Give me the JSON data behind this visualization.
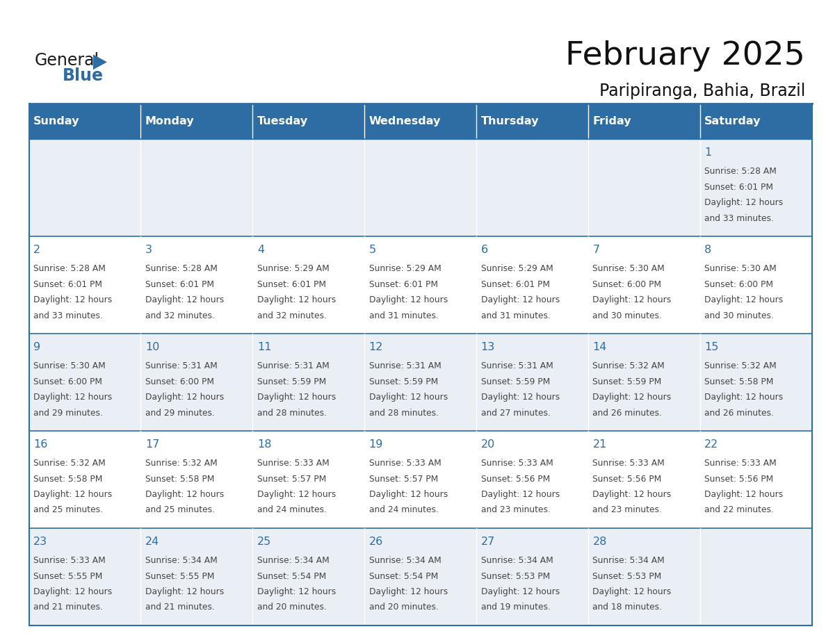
{
  "title": "February 2025",
  "subtitle": "Paripiranga, Bahia, Brazil",
  "days_of_week": [
    "Sunday",
    "Monday",
    "Tuesday",
    "Wednesday",
    "Thursday",
    "Friday",
    "Saturday"
  ],
  "header_bg": "#2E6DA4",
  "header_text": "#FFFFFF",
  "row_bg_odd": "#EAEFF5",
  "row_bg_even": "#FFFFFF",
  "day_num_color": "#2E6DA4",
  "text_color": "#444444",
  "border_color": "#2E6DA4",
  "logo_general_color": "#1a1a1a",
  "logo_blue_color": "#2E6DA4",
  "logo_tri_color": "#2E6DA4",
  "calendar": [
    [
      null,
      null,
      null,
      null,
      null,
      null,
      {
        "day": 1,
        "sunrise": "5:28 AM",
        "sunset": "6:01 PM",
        "daylight": "12 hours",
        "daylight2": "and 33 minutes."
      }
    ],
    [
      {
        "day": 2,
        "sunrise": "5:28 AM",
        "sunset": "6:01 PM",
        "daylight": "12 hours",
        "daylight2": "and 33 minutes."
      },
      {
        "day": 3,
        "sunrise": "5:28 AM",
        "sunset": "6:01 PM",
        "daylight": "12 hours",
        "daylight2": "and 32 minutes."
      },
      {
        "day": 4,
        "sunrise": "5:29 AM",
        "sunset": "6:01 PM",
        "daylight": "12 hours",
        "daylight2": "and 32 minutes."
      },
      {
        "day": 5,
        "sunrise": "5:29 AM",
        "sunset": "6:01 PM",
        "daylight": "12 hours",
        "daylight2": "and 31 minutes."
      },
      {
        "day": 6,
        "sunrise": "5:29 AM",
        "sunset": "6:01 PM",
        "daylight": "12 hours",
        "daylight2": "and 31 minutes."
      },
      {
        "day": 7,
        "sunrise": "5:30 AM",
        "sunset": "6:00 PM",
        "daylight": "12 hours",
        "daylight2": "and 30 minutes."
      },
      {
        "day": 8,
        "sunrise": "5:30 AM",
        "sunset": "6:00 PM",
        "daylight": "12 hours",
        "daylight2": "and 30 minutes."
      }
    ],
    [
      {
        "day": 9,
        "sunrise": "5:30 AM",
        "sunset": "6:00 PM",
        "daylight": "12 hours",
        "daylight2": "and 29 minutes."
      },
      {
        "day": 10,
        "sunrise": "5:31 AM",
        "sunset": "6:00 PM",
        "daylight": "12 hours",
        "daylight2": "and 29 minutes."
      },
      {
        "day": 11,
        "sunrise": "5:31 AM",
        "sunset": "5:59 PM",
        "daylight": "12 hours",
        "daylight2": "and 28 minutes."
      },
      {
        "day": 12,
        "sunrise": "5:31 AM",
        "sunset": "5:59 PM",
        "daylight": "12 hours",
        "daylight2": "and 28 minutes."
      },
      {
        "day": 13,
        "sunrise": "5:31 AM",
        "sunset": "5:59 PM",
        "daylight": "12 hours",
        "daylight2": "and 27 minutes."
      },
      {
        "day": 14,
        "sunrise": "5:32 AM",
        "sunset": "5:59 PM",
        "daylight": "12 hours",
        "daylight2": "and 26 minutes."
      },
      {
        "day": 15,
        "sunrise": "5:32 AM",
        "sunset": "5:58 PM",
        "daylight": "12 hours",
        "daylight2": "and 26 minutes."
      }
    ],
    [
      {
        "day": 16,
        "sunrise": "5:32 AM",
        "sunset": "5:58 PM",
        "daylight": "12 hours",
        "daylight2": "and 25 minutes."
      },
      {
        "day": 17,
        "sunrise": "5:32 AM",
        "sunset": "5:58 PM",
        "daylight": "12 hours",
        "daylight2": "and 25 minutes."
      },
      {
        "day": 18,
        "sunrise": "5:33 AM",
        "sunset": "5:57 PM",
        "daylight": "12 hours",
        "daylight2": "and 24 minutes."
      },
      {
        "day": 19,
        "sunrise": "5:33 AM",
        "sunset": "5:57 PM",
        "daylight": "12 hours",
        "daylight2": "and 24 minutes."
      },
      {
        "day": 20,
        "sunrise": "5:33 AM",
        "sunset": "5:56 PM",
        "daylight": "12 hours",
        "daylight2": "and 23 minutes."
      },
      {
        "day": 21,
        "sunrise": "5:33 AM",
        "sunset": "5:56 PM",
        "daylight": "12 hours",
        "daylight2": "and 23 minutes."
      },
      {
        "day": 22,
        "sunrise": "5:33 AM",
        "sunset": "5:56 PM",
        "daylight": "12 hours",
        "daylight2": "and 22 minutes."
      }
    ],
    [
      {
        "day": 23,
        "sunrise": "5:33 AM",
        "sunset": "5:55 PM",
        "daylight": "12 hours",
        "daylight2": "and 21 minutes."
      },
      {
        "day": 24,
        "sunrise": "5:34 AM",
        "sunset": "5:55 PM",
        "daylight": "12 hours",
        "daylight2": "and 21 minutes."
      },
      {
        "day": 25,
        "sunrise": "5:34 AM",
        "sunset": "5:54 PM",
        "daylight": "12 hours",
        "daylight2": "and 20 minutes."
      },
      {
        "day": 26,
        "sunrise": "5:34 AM",
        "sunset": "5:54 PM",
        "daylight": "12 hours",
        "daylight2": "and 20 minutes."
      },
      {
        "day": 27,
        "sunrise": "5:34 AM",
        "sunset": "5:53 PM",
        "daylight": "12 hours",
        "daylight2": "and 19 minutes."
      },
      {
        "day": 28,
        "sunrise": "5:34 AM",
        "sunset": "5:53 PM",
        "daylight": "12 hours",
        "daylight2": "and 18 minutes."
      },
      null
    ]
  ],
  "figsize": [
    11.88,
    9.18
  ],
  "dpi": 100
}
